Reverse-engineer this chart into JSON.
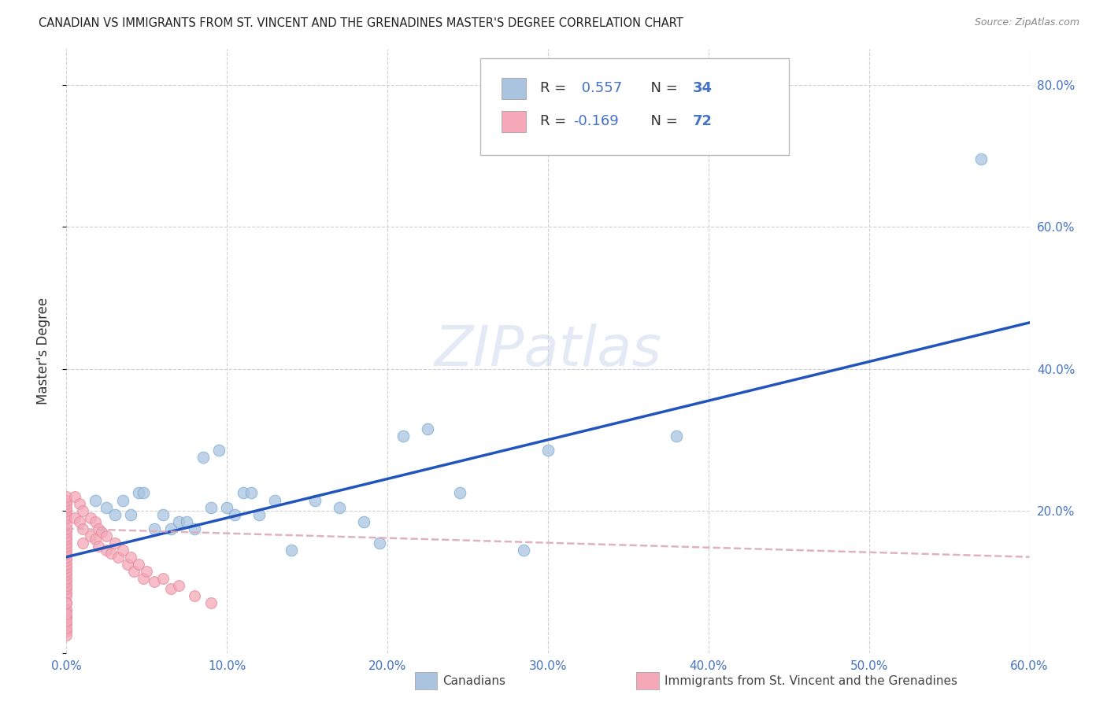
{
  "title": "CANADIAN VS IMMIGRANTS FROM ST. VINCENT AND THE GRENADINES MASTER'S DEGREE CORRELATION CHART",
  "source": "Source: ZipAtlas.com",
  "ylabel": "Master's Degree",
  "xlim": [
    0.0,
    0.6
  ],
  "ylim": [
    0.0,
    0.85
  ],
  "xticks": [
    0.0,
    0.1,
    0.2,
    0.3,
    0.4,
    0.5,
    0.6
  ],
  "yticks": [
    0.2,
    0.4,
    0.6,
    0.8
  ],
  "xticklabels": [
    "0.0%",
    "10.0%",
    "20.0%",
    "30.0%",
    "40.0%",
    "50.0%",
    "60.0%"
  ],
  "yticklabels": [
    "20.0%",
    "40.0%",
    "60.0%",
    "80.0%"
  ],
  "canadian_color": "#aac4e0",
  "canadian_edge_color": "#7aafd4",
  "immigrant_color": "#f4a8b8",
  "immigrant_edge_color": "#e8889a",
  "canadian_line_color": "#2255bb",
  "immigrant_line_color": "#ddaabb",
  "tick_color": "#4472c4",
  "grid_color": "#cccccc",
  "R_canadian": 0.557,
  "N_canadian": 34,
  "R_immigrant": -0.169,
  "N_immigrant": 72,
  "legend_label_canadian": "Canadians",
  "legend_label_immigrant": "Immigrants from St. Vincent and the Grenadines",
  "watermark": "ZIPatlas",
  "can_line_x0": 0.0,
  "can_line_y0": 0.135,
  "can_line_x1": 0.6,
  "can_line_y1": 0.465,
  "imm_line_x0": 0.0,
  "imm_line_y0": 0.175,
  "imm_line_x1": 0.6,
  "imm_line_y1": 0.135,
  "canadian_x": [
    0.018,
    0.025,
    0.03,
    0.035,
    0.04,
    0.045,
    0.048,
    0.055,
    0.06,
    0.065,
    0.07,
    0.075,
    0.08,
    0.085,
    0.09,
    0.095,
    0.1,
    0.105,
    0.11,
    0.115,
    0.12,
    0.13,
    0.14,
    0.155,
    0.17,
    0.185,
    0.195,
    0.21,
    0.225,
    0.245,
    0.285,
    0.3,
    0.38,
    0.57
  ],
  "canadian_y": [
    0.215,
    0.205,
    0.195,
    0.215,
    0.195,
    0.225,
    0.225,
    0.175,
    0.195,
    0.175,
    0.185,
    0.185,
    0.175,
    0.275,
    0.205,
    0.285,
    0.205,
    0.195,
    0.225,
    0.225,
    0.195,
    0.215,
    0.145,
    0.215,
    0.205,
    0.185,
    0.155,
    0.305,
    0.315,
    0.225,
    0.145,
    0.285,
    0.305,
    0.695
  ],
  "immigrant_x": [
    0.0,
    0.0,
    0.0,
    0.0,
    0.0,
    0.0,
    0.0,
    0.0,
    0.0,
    0.0,
    0.0,
    0.0,
    0.0,
    0.0,
    0.0,
    0.0,
    0.0,
    0.0,
    0.0,
    0.0,
    0.0,
    0.0,
    0.0,
    0.0,
    0.0,
    0.0,
    0.0,
    0.0,
    0.0,
    0.0,
    0.0,
    0.0,
    0.0,
    0.0,
    0.0,
    0.0,
    0.0,
    0.0,
    0.0,
    0.0,
    0.005,
    0.005,
    0.008,
    0.008,
    0.01,
    0.01,
    0.01,
    0.015,
    0.015,
    0.018,
    0.018,
    0.02,
    0.02,
    0.022,
    0.025,
    0.025,
    0.028,
    0.03,
    0.032,
    0.035,
    0.038,
    0.04,
    0.042,
    0.045,
    0.048,
    0.05,
    0.055,
    0.06,
    0.065,
    0.07,
    0.08,
    0.09
  ],
  "immigrant_y": [
    0.05,
    0.06,
    0.07,
    0.08,
    0.085,
    0.09,
    0.095,
    0.1,
    0.105,
    0.11,
    0.115,
    0.12,
    0.125,
    0.13,
    0.135,
    0.14,
    0.145,
    0.15,
    0.155,
    0.16,
    0.165,
    0.17,
    0.175,
    0.18,
    0.19,
    0.195,
    0.2,
    0.205,
    0.21,
    0.215,
    0.22,
    0.03,
    0.04,
    0.05,
    0.06,
    0.07,
    0.025,
    0.035,
    0.045,
    0.055,
    0.22,
    0.19,
    0.21,
    0.185,
    0.2,
    0.175,
    0.155,
    0.19,
    0.165,
    0.185,
    0.16,
    0.175,
    0.15,
    0.17,
    0.145,
    0.165,
    0.14,
    0.155,
    0.135,
    0.145,
    0.125,
    0.135,
    0.115,
    0.125,
    0.105,
    0.115,
    0.1,
    0.105,
    0.09,
    0.095,
    0.08,
    0.07
  ]
}
